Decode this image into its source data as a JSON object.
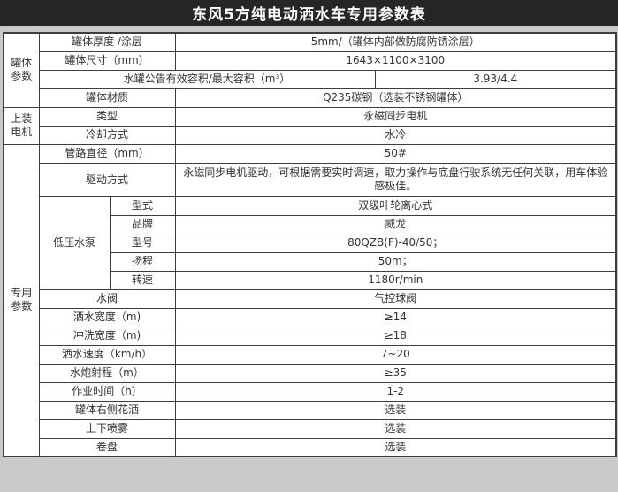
{
  "title": "东风5方纯电动洒水车专用参数表",
  "colors": {
    "title_bg": "#262626",
    "title_fg": "#ffffff",
    "border": "#3d3d3d",
    "page_bg": "#c9c9c9",
    "cell_bg": "#ffffff",
    "text": "#333333"
  },
  "table": {
    "sections": [
      {
        "group": "罐体参数",
        "rows": [
          {
            "label": "罐体厚度 /涂层",
            "value": "5mm/（罐体内部做防腐防锈涂层）"
          },
          {
            "label": "罐体尺寸（mm）",
            "value": "1643×1100×3100"
          },
          {
            "label": "水罐公告有效容积/最大容积（m³）",
            "value": "3.93/4.4",
            "wide_label": true
          },
          {
            "label": "罐体材质",
            "value": "Q235碳钢（选装不锈钢罐体）"
          }
        ]
      },
      {
        "group": "上装电机",
        "rows": [
          {
            "label": "类型",
            "value": "永磁同步电机"
          },
          {
            "label": "冷却方式",
            "value": "水冷"
          }
        ]
      },
      {
        "group": "专用参数",
        "rows": [
          {
            "label": "管路直径（mm）",
            "value": "50#"
          },
          {
            "label": "驱动方式",
            "value": "永磁同步电机驱动，可根据需要实时调速，取力操作与底盘行驶系统无任何关联，用车体验感极佳。",
            "tall": true
          },
          {
            "subgroup": "低压水泵",
            "subrows": [
              {
                "label": "型式",
                "value": "双级叶轮离心式"
              },
              {
                "label": "品牌",
                "value": "威龙"
              },
              {
                "label": "型号",
                "value": "80QZB(F)-40/50；"
              },
              {
                "label": "扬程",
                "value": "50m；"
              },
              {
                "label": "转速",
                "value": "1180r/min"
              }
            ]
          },
          {
            "label": "水阀",
            "value": "气控球阀"
          },
          {
            "label": "洒水宽度（m)",
            "value": "≥14"
          },
          {
            "label": "冲洗宽度（m)",
            "value": "≥18"
          },
          {
            "label": "洒水速度（km/h）",
            "value": "7~20"
          },
          {
            "label": "水炮射程（m）",
            "value": "≥35"
          },
          {
            "label": "作业时间（h）",
            "value": "1-2"
          },
          {
            "label": "罐体右侧花洒",
            "value": "选装"
          },
          {
            "label": "上下喷雾",
            "value": "选装"
          },
          {
            "label": "卷盘",
            "value": "选装"
          }
        ]
      }
    ]
  }
}
